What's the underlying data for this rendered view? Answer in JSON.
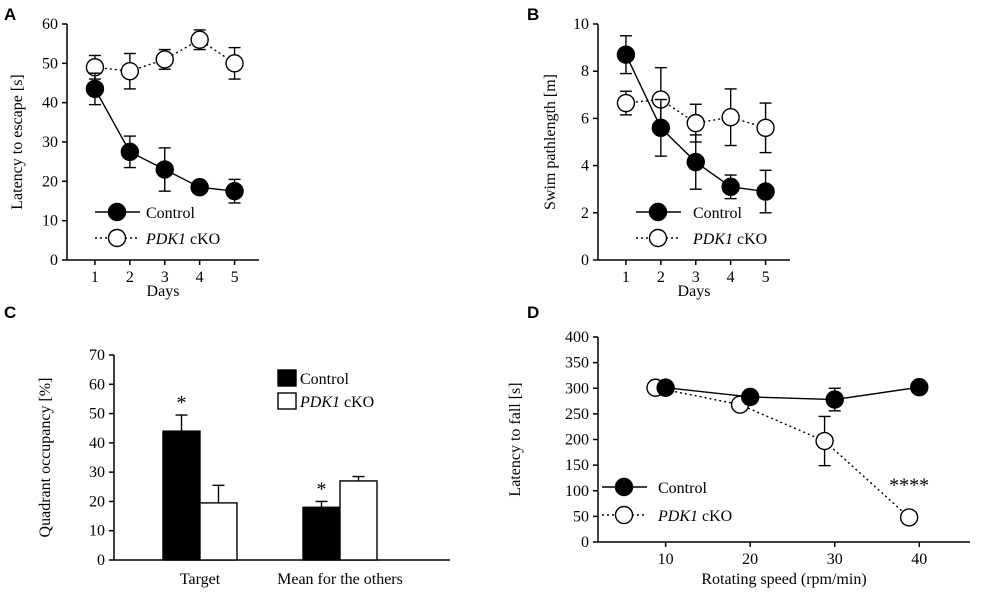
{
  "chart_data": [
    {
      "panel": "A",
      "type": "line",
      "xlabel": "Days",
      "ylabel": "Latency to escape [s]",
      "x": [
        1,
        2,
        3,
        4,
        5
      ],
      "xlim": [
        0.2,
        5.7
      ],
      "ylim": [
        0,
        60
      ],
      "xticks": [
        1,
        2,
        3,
        4,
        5
      ],
      "yticks": [
        0,
        10,
        20,
        30,
        40,
        50,
        60
      ],
      "legend_position": "bottom-left",
      "series": [
        {
          "name": "Control",
          "style": "filled-solid",
          "values": [
            43.5,
            27.5,
            23,
            18.5,
            17.5
          ],
          "errors": [
            4,
            4,
            5.5,
            1.5,
            3
          ]
        },
        {
          "name": "PDK1",
          "name_suffix": " cKO",
          "style": "open-dotted",
          "values": [
            49,
            48,
            51,
            56,
            50
          ],
          "errors": [
            3,
            4.5,
            2.5,
            2.5,
            4
          ]
        }
      ]
    },
    {
      "panel": "B",
      "type": "line",
      "xlabel": "Days",
      "ylabel": "Swim pathlength [m]",
      "x": [
        1,
        2,
        3,
        4,
        5
      ],
      "xlim": [
        0.2,
        5.7
      ],
      "ylim": [
        0,
        10
      ],
      "xticks": [
        1,
        2,
        3,
        4,
        5
      ],
      "yticks": [
        0,
        2,
        4,
        6,
        8,
        10
      ],
      "legend_position": "bottom-left",
      "series": [
        {
          "name": "Control",
          "style": "filled-solid",
          "values": [
            8.7,
            5.6,
            4.15,
            3.1,
            2.9
          ],
          "errors": [
            0.8,
            1.2,
            1.15,
            0.5,
            0.9
          ]
        },
        {
          "name": "PDK1",
          "name_suffix": " cKO",
          "style": "open-dotted",
          "values": [
            6.65,
            6.8,
            5.8,
            6.05,
            5.6
          ],
          "errors": [
            0.5,
            1.35,
            0.8,
            1.2,
            1.05
          ]
        }
      ]
    },
    {
      "panel": "C",
      "type": "bar",
      "ylabel": "Quadrant occupancy [%]",
      "categories": [
        "Target",
        "Mean for the others"
      ],
      "ylim": [
        0,
        70
      ],
      "yticks": [
        0,
        10,
        20,
        30,
        40,
        50,
        60,
        70
      ],
      "legend_position": "top-right",
      "significance": [
        "*",
        "*"
      ],
      "series": [
        {
          "name": "Control",
          "color": "#000000",
          "values": [
            44,
            18
          ],
          "errors": [
            5.5,
            2
          ]
        },
        {
          "name": "PDK1",
          "name_suffix": " cKO",
          "color": "#ffffff",
          "values": [
            19.5,
            27
          ],
          "errors": [
            6,
            1.5
          ]
        }
      ]
    },
    {
      "panel": "D",
      "type": "line",
      "xlabel": "Rotating speed (rpm/min)",
      "ylabel": "Latency to fall [s]",
      "xlim": [
        2,
        46
      ],
      "ylim": [
        0,
        400
      ],
      "xticks": [
        10,
        20,
        30,
        40
      ],
      "yticks": [
        0,
        50,
        100,
        150,
        200,
        250,
        300,
        350,
        400
      ],
      "legend_position": "bottom-left",
      "annotation": "****",
      "series": [
        {
          "name": "Control",
          "style": "filled-solid",
          "x": [
            10,
            20,
            30,
            40
          ],
          "values": [
            301,
            283,
            278,
            302
          ],
          "errors": [
            0,
            13,
            22,
            0
          ]
        },
        {
          "name": "PDK1",
          "name_suffix": " cKO",
          "style": "open-dotted",
          "x": [
            8.8,
            18.8,
            28.8,
            38.8
          ],
          "values": [
            301,
            268,
            197,
            48
          ],
          "errors": [
            0,
            0,
            48,
            12
          ]
        }
      ]
    }
  ]
}
